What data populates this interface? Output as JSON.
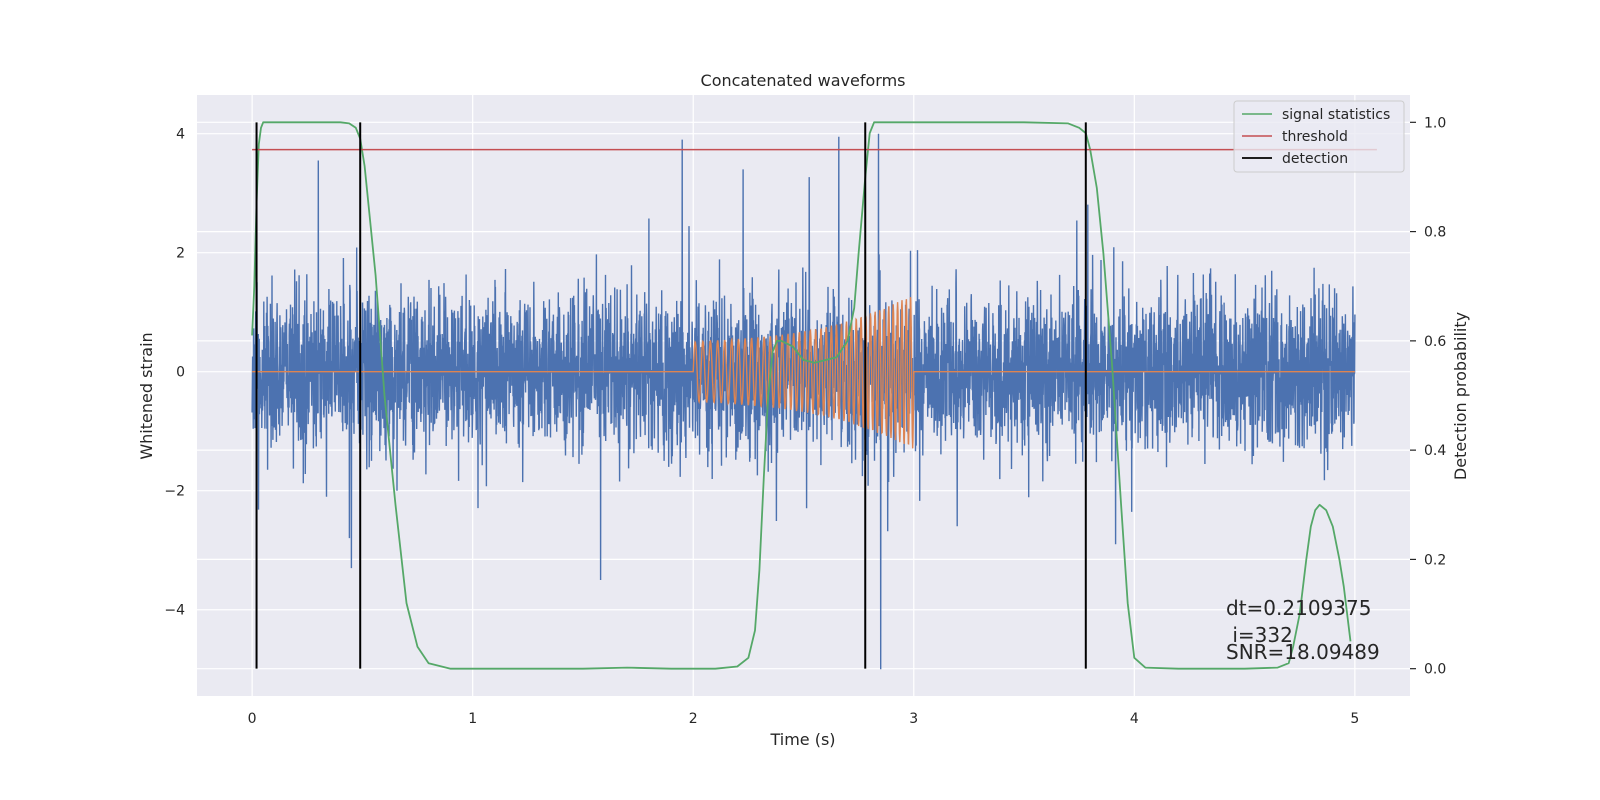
{
  "chart_data": {
    "type": "line",
    "title": "Concatenated waveforms",
    "xlabel": "Time (s)",
    "ylabel": "Whitened strain",
    "y2label": "Detection probability",
    "xlim": [
      -0.25,
      5.25
    ],
    "ylim": [
      -5.45,
      4.65
    ],
    "y2lim": [
      -0.05,
      1.05
    ],
    "xticks": [
      0,
      1,
      2,
      3,
      4,
      5
    ],
    "xtick_labels": [
      "0",
      "1",
      "2",
      "3",
      "4",
      "5"
    ],
    "yticks": [
      -4,
      -2,
      0,
      2,
      4
    ],
    "ytick_labels": [
      "−4",
      "−2",
      "0",
      "2",
      "4"
    ],
    "y2ticks": [
      0.0,
      0.2,
      0.4,
      0.6,
      0.8,
      1.0
    ],
    "y2tick_labels": [
      "0.0",
      "0.2",
      "0.4",
      "0.6",
      "0.8",
      "1.0"
    ],
    "grid": true,
    "legend_position": "top-right",
    "legend": [
      "signal statistics",
      "threshold",
      "detection"
    ],
    "colors": {
      "noise": "#4c72b0",
      "injection": "#dd8452",
      "signal_statistics": "#55a868",
      "threshold": "#c44e52",
      "detection": "#000000",
      "axes_bg": "#eaeaf2",
      "grid": "#ffffff"
    },
    "series": [
      {
        "role": "whitened strain (noise)",
        "color": "#4c72b0",
        "x_range": [
          0,
          5
        ],
        "typical_range": [
          -2.0,
          2.6
        ],
        "notable_peaks": [
          {
            "x": 0.3,
            "y": 3.55
          },
          {
            "x": 1.95,
            "y": 3.9
          },
          {
            "x": 2.66,
            "y": 3.95
          },
          {
            "x": 2.84,
            "y": 4.0
          },
          {
            "x": 1.58,
            "y": -3.5
          },
          {
            "x": 0.45,
            "y": -3.3
          },
          {
            "x": 2.85,
            "y": -5.0
          }
        ]
      },
      {
        "role": "injected waveform",
        "color": "#dd8452",
        "x": [
          0,
          2.0,
          2.1,
          2.2,
          2.3,
          2.4,
          2.5,
          2.6,
          2.7,
          2.8,
          2.9,
          3.0,
          3.0,
          5.0
        ],
        "amplitude": [
          0,
          0.5,
          0.52,
          0.55,
          0.58,
          0.62,
          0.68,
          0.75,
          0.85,
          0.98,
          1.12,
          1.3,
          0,
          0
        ]
      },
      {
        "name": "signal statistics",
        "color": "#55a868",
        "axis": "right",
        "x": [
          0.0,
          0.01,
          0.02,
          0.03,
          0.04,
          0.05,
          0.07,
          0.1,
          0.15,
          0.2,
          0.3,
          0.4,
          0.44,
          0.47,
          0.49,
          0.51,
          0.53,
          0.56,
          0.6,
          0.65,
          0.7,
          0.75,
          0.8,
          0.9,
          1.2,
          1.5,
          1.7,
          1.9,
          2.1,
          2.2,
          2.25,
          2.28,
          2.3,
          2.32,
          2.34,
          2.36,
          2.38,
          2.4,
          2.45,
          2.5,
          2.55,
          2.6,
          2.65,
          2.7,
          2.73,
          2.75,
          2.78,
          2.8,
          2.82,
          2.85,
          2.9,
          3.0,
          3.2,
          3.5,
          3.7,
          3.75,
          3.78,
          3.8,
          3.83,
          3.86,
          3.9,
          3.94,
          3.97,
          4.0,
          4.05,
          4.2,
          4.5,
          4.65,
          4.7,
          4.72,
          4.75,
          4.78,
          4.8,
          4.82,
          4.84,
          4.87,
          4.9,
          4.93,
          4.95,
          4.98
        ],
        "values": [
          0.61,
          0.7,
          0.85,
          0.96,
          0.99,
          1.0,
          1.0,
          1.0,
          1.0,
          1.0,
          1.0,
          1.0,
          0.998,
          0.99,
          0.97,
          0.92,
          0.84,
          0.72,
          0.5,
          0.3,
          0.12,
          0.04,
          0.01,
          0.0,
          0.0,
          0.0,
          0.002,
          0.0,
          0.0,
          0.004,
          0.02,
          0.07,
          0.18,
          0.35,
          0.5,
          0.58,
          0.6,
          0.6,
          0.59,
          0.565,
          0.56,
          0.565,
          0.57,
          0.6,
          0.66,
          0.76,
          0.9,
          0.98,
          1.0,
          1.0,
          1.0,
          1.0,
          1.0,
          1.0,
          0.998,
          0.99,
          0.98,
          0.95,
          0.88,
          0.76,
          0.55,
          0.3,
          0.12,
          0.02,
          0.002,
          0.0,
          0.0,
          0.002,
          0.01,
          0.04,
          0.1,
          0.2,
          0.26,
          0.29,
          0.3,
          0.29,
          0.26,
          0.2,
          0.15,
          0.05
        ]
      },
      {
        "name": "threshold",
        "color": "#c44e52",
        "axis": "right",
        "x": [
          0,
          5.1
        ],
        "values": [
          0.95,
          0.95
        ]
      },
      {
        "name": "detection",
        "color": "#000000",
        "type": "vlines",
        "x": [
          0.02,
          0.49,
          2.78,
          3.78
        ]
      }
    ],
    "annotations": [
      "dt=0.2109375",
      " i=332",
      "SNR=18.09489"
    ]
  }
}
